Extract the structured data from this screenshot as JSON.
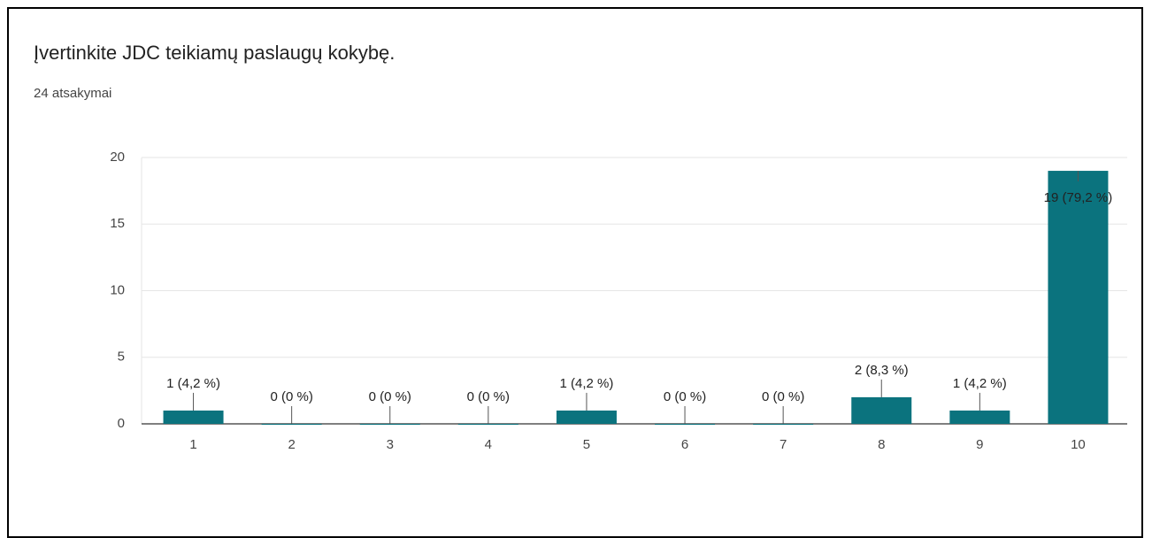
{
  "chart_data": {
    "type": "bar",
    "title": "Įvertinkite JDC teikiamų paslaugų kokybę.",
    "subtitle": "24 atsakymai",
    "categories": [
      "1",
      "2",
      "3",
      "4",
      "5",
      "6",
      "7",
      "8",
      "9",
      "10"
    ],
    "values": [
      1,
      0,
      0,
      0,
      1,
      0,
      0,
      2,
      1,
      19
    ],
    "value_labels": [
      "1 (4,2 %)",
      "0 (0 %)",
      "0 (0 %)",
      "0 (0 %)",
      "1 (4,2 %)",
      "0 (0 %)",
      "0 (0 %)",
      "2 (8,3 %)",
      "1 (4,2 %)",
      "19 (79,2 %)"
    ],
    "color": "#0b737e",
    "ylim": [
      0,
      20
    ],
    "yticks": [
      0,
      5,
      10,
      15,
      20
    ],
    "grid": true
  }
}
